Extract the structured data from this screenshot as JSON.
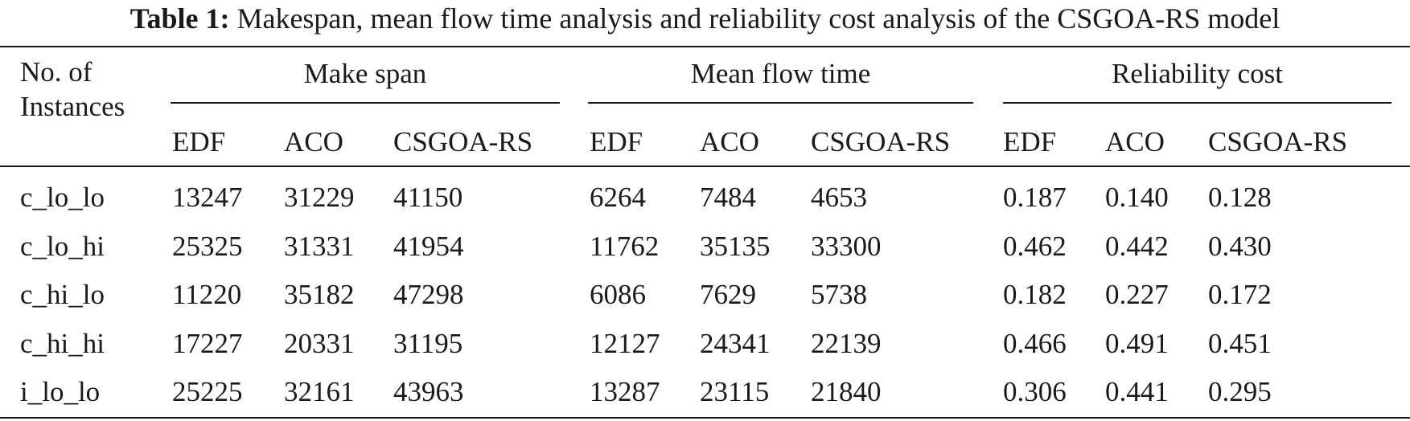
{
  "caption": {
    "label": "Table 1:",
    "text": "Makespan, mean flow time analysis and reliability cost analysis of the CSGOA-RS model"
  },
  "header": {
    "row_label_line1": "No. of",
    "row_label_line2": "Instances",
    "groups": [
      "Make span",
      "Mean flow time",
      "Reliability cost"
    ],
    "subcolumns": [
      "EDF",
      "ACO",
      "CSGOA-RS",
      "EDF",
      "ACO",
      "CSGOA-RS",
      "EDF",
      "ACO",
      "CSGOA-RS"
    ]
  },
  "rows": [
    {
      "instance": "c_lo_lo",
      "values": [
        "13247",
        "31229",
        "41150",
        "6264",
        "7484",
        "4653",
        "0.187",
        "0.140",
        "0.128"
      ]
    },
    {
      "instance": "c_lo_hi",
      "values": [
        "25325",
        "31331",
        "41954",
        "11762",
        "35135",
        "33300",
        "0.462",
        "0.442",
        "0.430"
      ]
    },
    {
      "instance": "c_hi_lo",
      "values": [
        "11220",
        "35182",
        "47298",
        "6086",
        "7629",
        "5738",
        "0.182",
        "0.227",
        "0.172"
      ]
    },
    {
      "instance": "c_hi_hi",
      "values": [
        "17227",
        "20331",
        "31195",
        "12127",
        "24341",
        "22139",
        "0.466",
        "0.491",
        "0.451"
      ]
    },
    {
      "instance": "i_lo_lo",
      "values": [
        "25225",
        "32161",
        "43963",
        "13287",
        "23115",
        "21840",
        "0.306",
        "0.441",
        "0.295"
      ]
    }
  ]
}
